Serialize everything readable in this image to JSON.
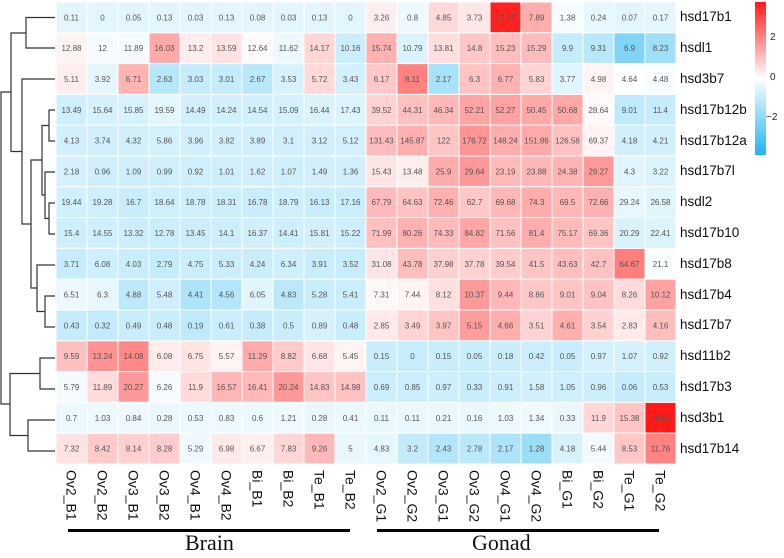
{
  "chart_data": {
    "type": "heatmap",
    "title": "",
    "scale": "row",
    "columns": [
      "Ov2_B1",
      "Ov2_B2",
      "Ov3_B1",
      "Ov3_B2",
      "Ov4_B1",
      "Ov4_B2",
      "Bi_B1",
      "Bi_B2",
      "Te_B1",
      "Te_B2",
      "Ov2_G1",
      "Ov2_G2",
      "Ov3_G1",
      "Ov3_G2",
      "Ov4_G1",
      "Ov4_G2",
      "Bi_G1",
      "Bi_G2",
      "Te_G1",
      "Te_G2"
    ],
    "rows": [
      "hsd17b1",
      "hsdl1",
      "hsd3b7",
      "hsd17b12b",
      "hsd17b12a",
      "hsd17b7l",
      "hsdl2",
      "hsd17b10",
      "hsd17b8",
      "hsd17b4",
      "hsd17b7",
      "hsd11b2",
      "hsd17b3",
      "hsd3b1",
      "hsd17b14"
    ],
    "values": [
      [
        0.11,
        0,
        0.05,
        0.13,
        0.03,
        0.13,
        0.08,
        0.03,
        0.13,
        0,
        3.26,
        0.8,
        4.85,
        3.73,
        17.87,
        7.89,
        1.38,
        0.24,
        0.07,
        0.17
      ],
      [
        12.88,
        12,
        11.89,
        16.03,
        13.2,
        13.59,
        12.64,
        11.62,
        14.17,
        10.16,
        15.74,
        10.79,
        13.81,
        14.8,
        15.23,
        15.29,
        9.9,
        9.31,
        6.9,
        8.23
      ],
      [
        5.11,
        3.92,
        6.71,
        2.63,
        3.03,
        3.01,
        2.67,
        3.53,
        5.72,
        3.43,
        6.17,
        8.11,
        2.17,
        6.3,
        6.77,
        5.83,
        3.77,
        4.98,
        4.64,
        4.48
      ],
      [
        13.49,
        15.64,
        15.85,
        19.59,
        14.49,
        14.24,
        14.54,
        15.09,
        16.44,
        17.43,
        39.52,
        44.31,
        46.34,
        52.21,
        52.27,
        50.45,
        50.68,
        28.64,
        9.01,
        11.4
      ],
      [
        4.13,
        3.74,
        4.32,
        5.86,
        3.96,
        3.82,
        3.89,
        3.1,
        3.12,
        5.12,
        131.43,
        145.87,
        122,
        176.72,
        148.24,
        151.86,
        126.58,
        69.37,
        4.18,
        4.21
      ],
      [
        2.18,
        0.96,
        1.09,
        0.99,
        0.92,
        1.01,
        1.62,
        1.07,
        1.49,
        1.36,
        15.43,
        13.48,
        25.9,
        29.64,
        23.19,
        23.88,
        24.38,
        29.27,
        4.3,
        3.22
      ],
      [
        19.44,
        19.28,
        16.7,
        18.64,
        18.78,
        18.31,
        16.78,
        18.79,
        16.13,
        17.16,
        67.79,
        64.63,
        72.46,
        62.7,
        69.68,
        74.3,
        69.5,
        72.66,
        29.24,
        26.58
      ],
      [
        15.4,
        14.55,
        13.32,
        12.78,
        13.45,
        14.1,
        16.37,
        14.41,
        15.81,
        15.22,
        71.99,
        80.26,
        74.33,
        84.82,
        71.56,
        81.4,
        75.17,
        69.36,
        20.29,
        22.41
      ],
      [
        3.71,
        6.08,
        4.03,
        2.79,
        4.75,
        5.33,
        4.24,
        6.34,
        3.91,
        3.52,
        31.08,
        43.78,
        37.98,
        37.78,
        39.54,
        41.5,
        43.63,
        42.7,
        64.67,
        21.1
      ],
      [
        6.51,
        6.3,
        4.88,
        5.48,
        4.41,
        4.56,
        6.05,
        4.83,
        5.28,
        5.41,
        7.31,
        7.44,
        8.12,
        10.37,
        9.44,
        8.86,
        9.01,
        9.04,
        8.26,
        10.12
      ],
      [
        0.43,
        0.32,
        0.49,
        0.48,
        0.19,
        0.61,
        0.38,
        0.5,
        0.89,
        0.48,
        2.85,
        3.49,
        3.97,
        5.15,
        4.66,
        3.51,
        4.61,
        3.54,
        2.83,
        4.16
      ],
      [
        9.59,
        13.24,
        14.08,
        6.08,
        6.75,
        5.57,
        11.29,
        8.82,
        6.68,
        5.45,
        0.15,
        0,
        0.15,
        0.05,
        0.18,
        0.42,
        0.05,
        0.97,
        1.07,
        0.92
      ],
      [
        5.79,
        11.89,
        20.27,
        6.26,
        11.9,
        16.57,
        16.41,
        20.24,
        14.83,
        14.98,
        0.69,
        0.85,
        0.97,
        0.33,
        0.91,
        1.58,
        1.05,
        0.96,
        0.06,
        0.53
      ],
      [
        0.7,
        1.03,
        0.84,
        0.28,
        0.53,
        0.83,
        0.6,
        1.21,
        0.28,
        0.41,
        0.11,
        0.11,
        0.21,
        0.16,
        1.03,
        1.34,
        0.33,
        11.9,
        15.38,
        49.55
      ],
      [
        7.32,
        8.42,
        8.14,
        8.28,
        5.29,
        6.98,
        6.67,
        7.83,
        9.26,
        5,
        4.83,
        3.2,
        2.43,
        2.78,
        2.17,
        1.28,
        4.18,
        5.44,
        8.53,
        11.76
      ]
    ],
    "colorbar": {
      "ticks": [
        "2",
        "0",
        "−2"
      ],
      "range": [
        -3.8,
        3.8
      ],
      "low_color": "#1EB5F0",
      "mid_color": "#FFFFFF",
      "high_color": "#FF1A1A"
    },
    "groups": [
      {
        "label": "Brain"
      },
      {
        "label": "Gonad"
      }
    ],
    "row_dendrogram": true
  }
}
